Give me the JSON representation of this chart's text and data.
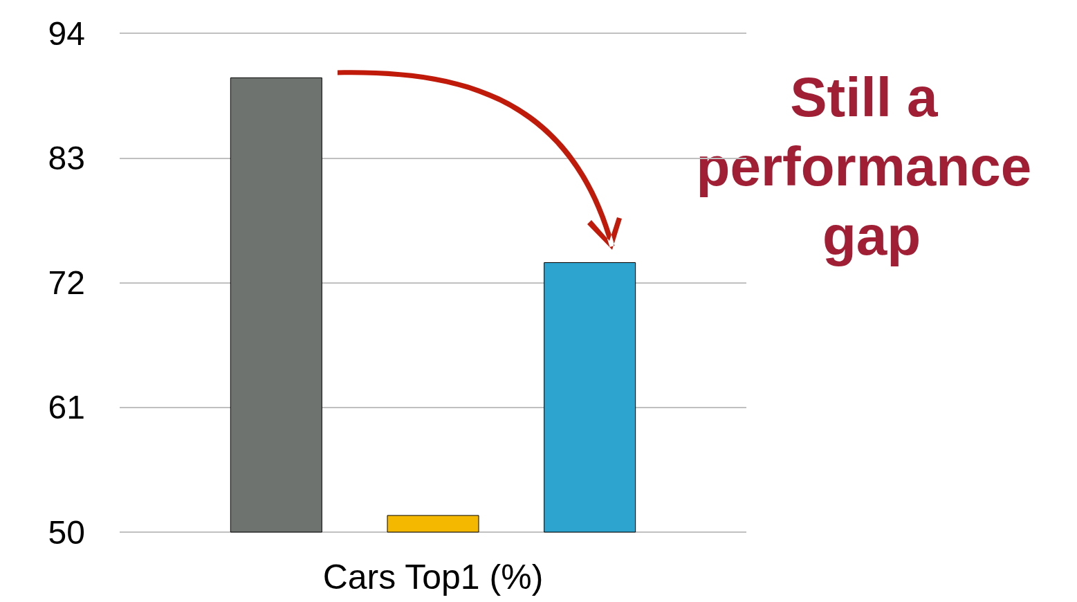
{
  "chart_data": {
    "type": "bar",
    "categories": [
      null,
      null,
      null
    ],
    "xlabel": "Cars Top1 (%)",
    "values": [
      90.1,
      51.5,
      73.8
    ],
    "colors": [
      "#6e7370",
      "#f5b800",
      "#2ca4cf"
    ],
    "ylim": [
      50,
      94
    ],
    "yticks": [
      50,
      61,
      72,
      83,
      94
    ],
    "grid": "y",
    "annotations": [
      "Still a performance gap"
    ]
  }
}
